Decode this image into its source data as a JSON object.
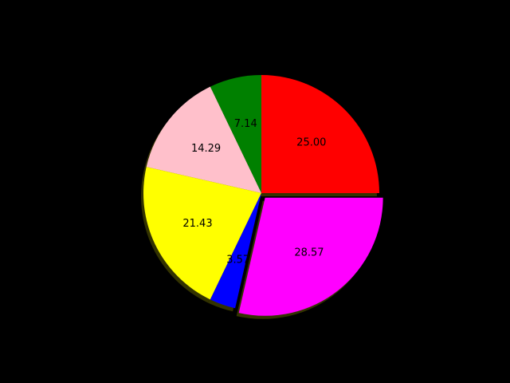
{
  "chart_data": {
    "type": "pie",
    "title": "",
    "start_angle_deg": 0,
    "direction": "counterclockwise",
    "shadow": true,
    "label_format": "%.2f",
    "slices": [
      {
        "value": 25.0,
        "label": "25.00",
        "color": "#ff0000",
        "explode": 0
      },
      {
        "value": 7.14,
        "label": "7.14",
        "color": "#008000",
        "explode": 0
      },
      {
        "value": 14.29,
        "label": "14.29",
        "color": "#ffc0cb",
        "explode": 0
      },
      {
        "value": 21.43,
        "label": "21.43",
        "color": "#ffff00",
        "explode": 0
      },
      {
        "value": 3.57,
        "label": "3.57",
        "color": "#0000ff",
        "explode": 0
      },
      {
        "value": 28.57,
        "label": "28.57",
        "color": "#ff00ff",
        "explode": 0.05
      }
    ]
  },
  "colors": {
    "background": "#000000",
    "shadow": "#333300",
    "edge": "#000000"
  }
}
